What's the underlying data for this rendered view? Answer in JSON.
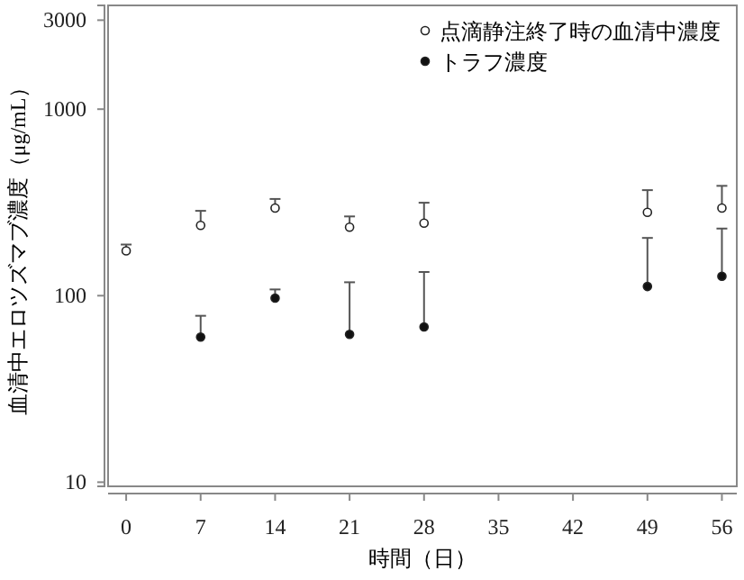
{
  "chart_data": {
    "type": "scatter",
    "xlabel": "時間（日）",
    "ylabel": "血清中エロツズマブ濃度（μg/mL）",
    "log": "y",
    "xlim": [
      -1.7,
      57.4
    ],
    "xticks": [
      0,
      7,
      14,
      21,
      28,
      35,
      42,
      49,
      56
    ],
    "ylim": [
      9.5,
      3600
    ],
    "yticks": [
      10,
      100,
      1000,
      3000
    ],
    "grid": false,
    "legend": "top right",
    "marker": "circle",
    "series": [
      {
        "name": "点滴静注終了時の血清中濃度",
        "color": "#ffffff",
        "x": [
          0,
          7,
          14,
          21,
          28,
          49,
          56
        ],
        "values": [
          174,
          238,
          295,
          233,
          245,
          280,
          295
        ],
        "errors": [
          [
            174,
            188
          ],
          [
            238,
            285
          ],
          [
            295,
            330
          ],
          [
            233,
            266
          ],
          [
            245,
            315
          ],
          [
            280,
            368
          ],
          [
            295,
            388
          ]
        ]
      },
      {
        "name": "トラフ濃度",
        "color": "#111111",
        "x": [
          7,
          14,
          21,
          28,
          49,
          56
        ],
        "values": [
          60,
          97,
          62,
          68,
          112,
          127
        ],
        "errors": [
          [
            60,
            78
          ],
          [
            97,
            108
          ],
          [
            62,
            118
          ],
          [
            68,
            134
          ],
          [
            112,
            204
          ],
          [
            127,
            229
          ]
        ]
      }
    ]
  }
}
